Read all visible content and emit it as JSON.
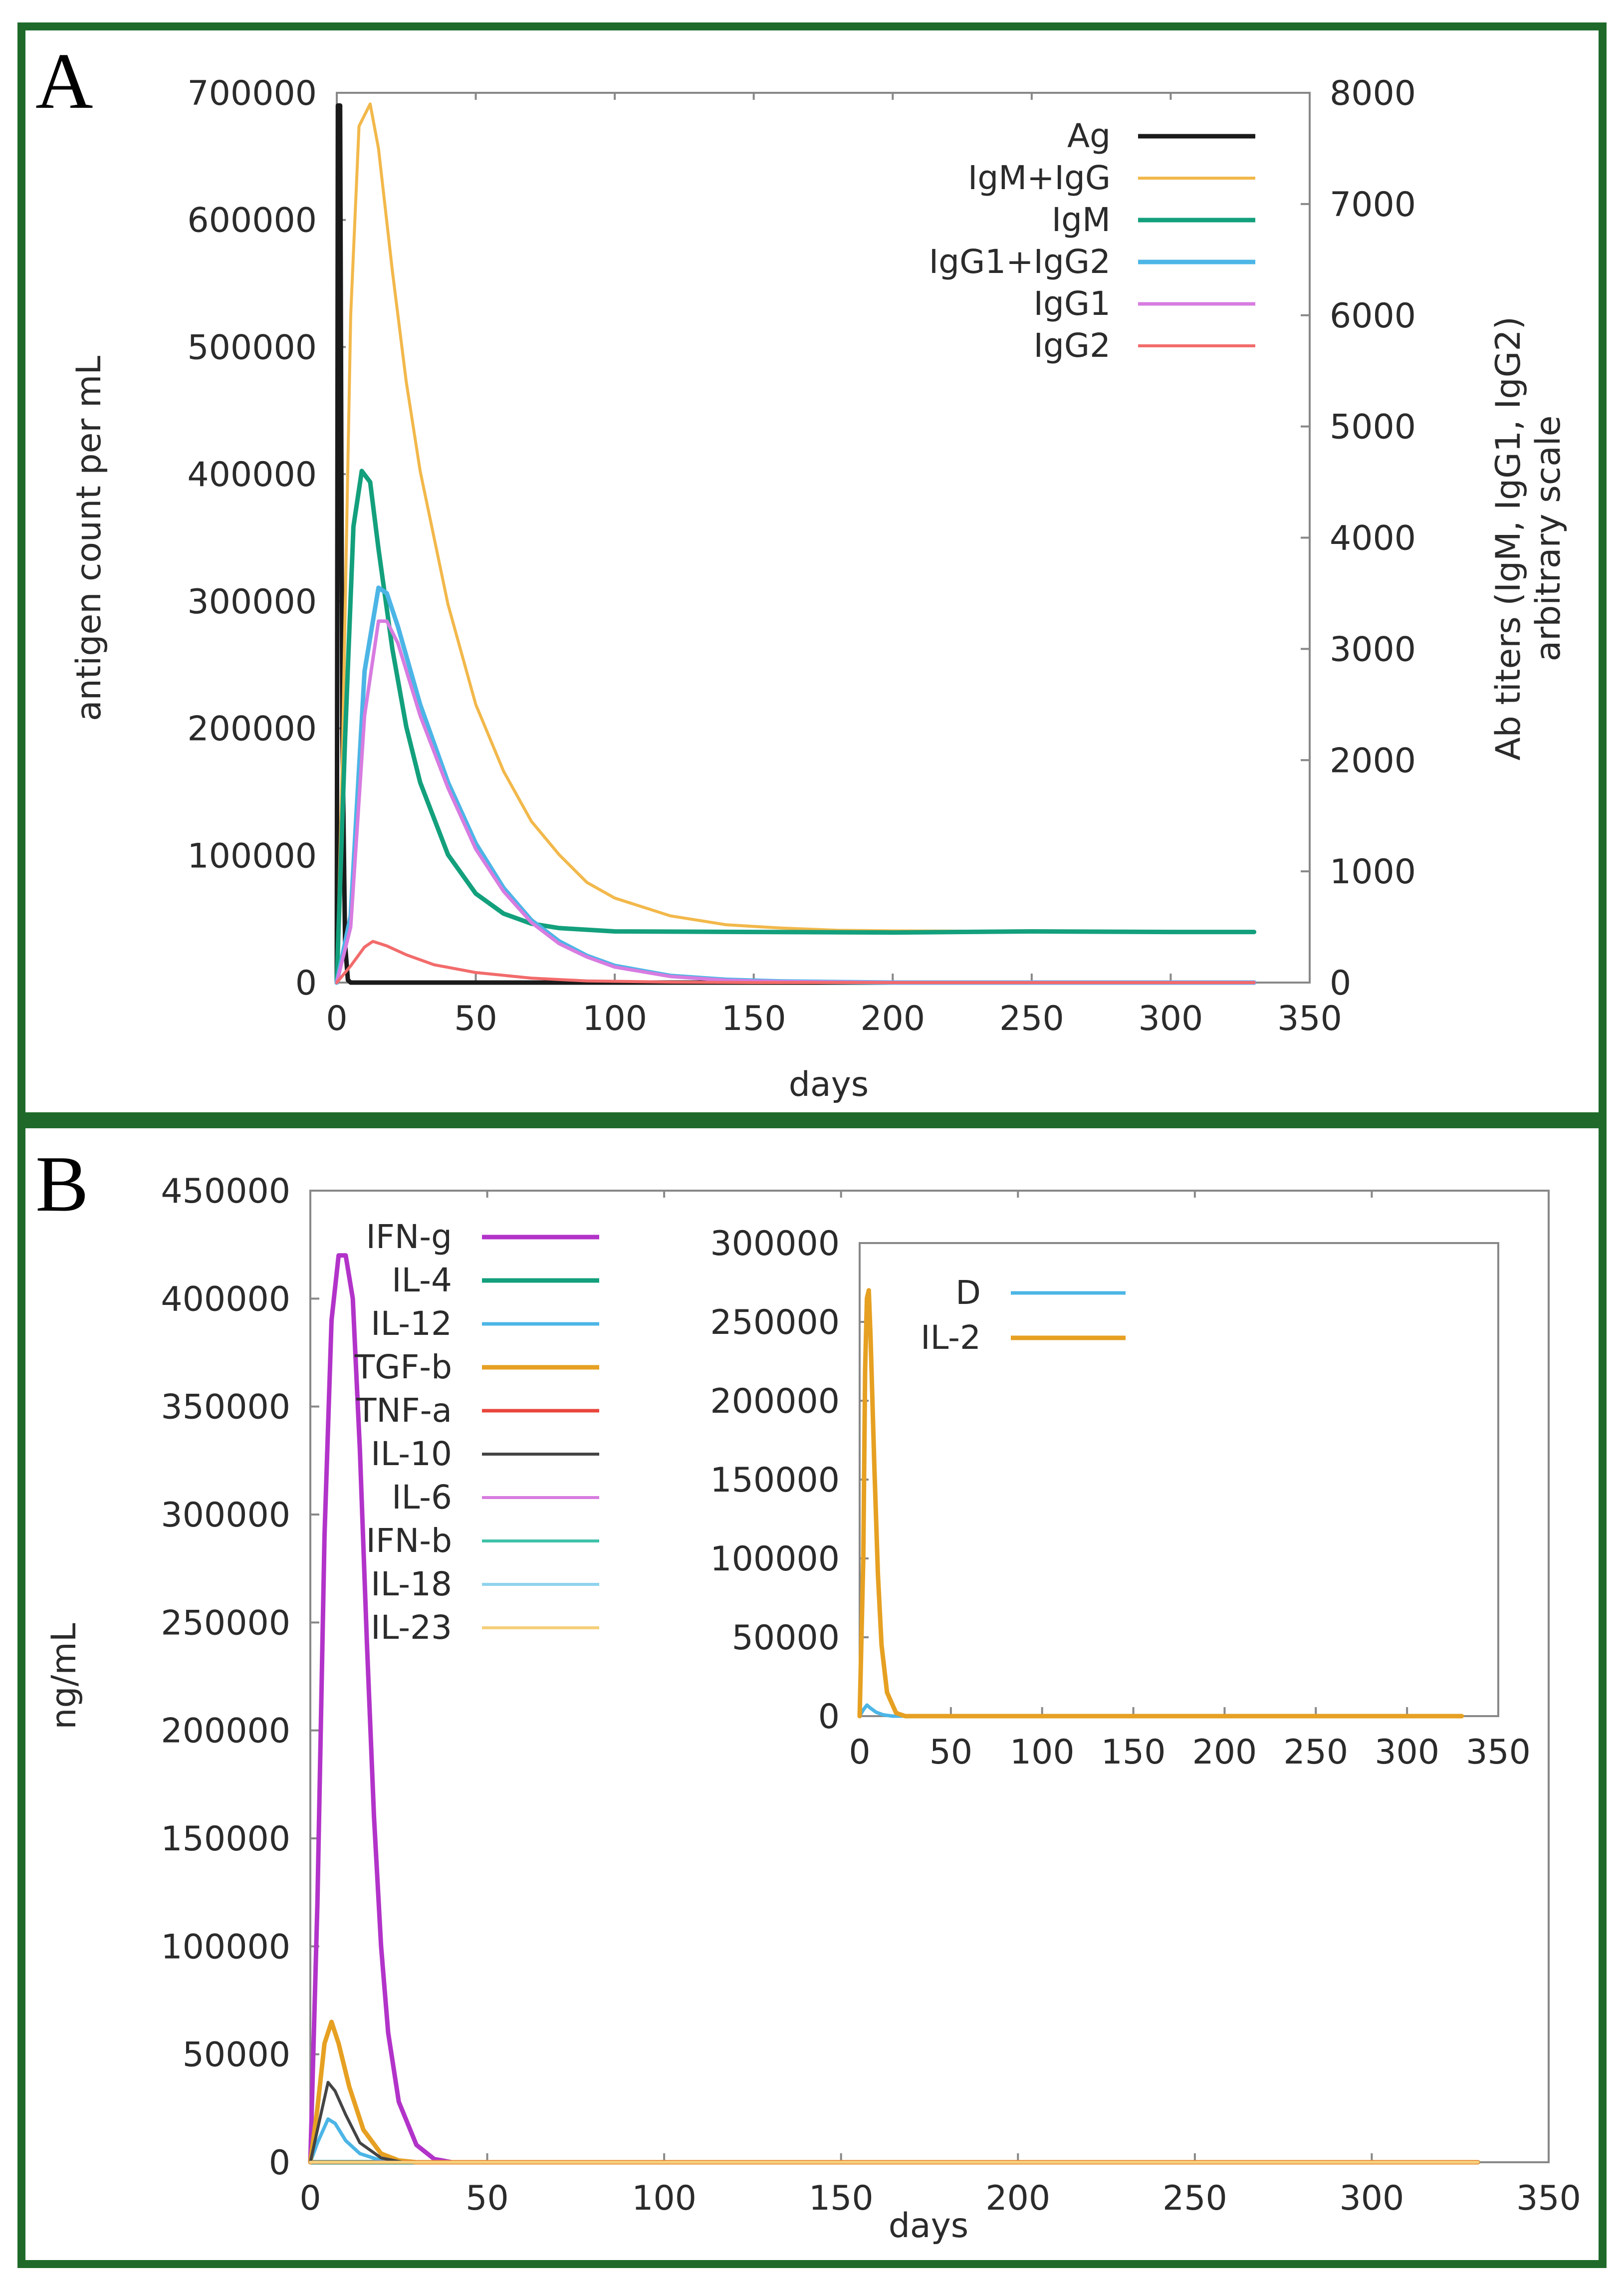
{
  "chart_data": [
    {
      "panel": "A",
      "type": "line",
      "xlabel": "days",
      "ylabel": "antigen count per mL",
      "y2label_line1": "Ab titers (IgM, IgG1, IgG2)",
      "y2label_line2": "arbitrary scale",
      "xlim": [
        0,
        350
      ],
      "ylim": [
        0,
        700000
      ],
      "y2lim": [
        0,
        8000
      ],
      "xticks": [
        0,
        50,
        100,
        150,
        200,
        250,
        300,
        350
      ],
      "yticks": [
        0,
        100000,
        200000,
        300000,
        400000,
        500000,
        600000,
        700000
      ],
      "y2ticks": [
        0,
        1000,
        2000,
        3000,
        4000,
        5000,
        6000,
        7000,
        8000
      ],
      "legend_position": "top-right",
      "series": [
        {
          "name": "Ag",
          "axis": "y",
          "color": "#1a1a1a",
          "width": 9,
          "points": [
            [
              0,
              0
            ],
            [
              0.4,
              690000
            ],
            [
              1.2,
              690000
            ],
            [
              2,
              200000
            ],
            [
              3,
              30000
            ],
            [
              4,
              2000
            ],
            [
              5,
              0
            ],
            [
              330,
              0
            ]
          ]
        },
        {
          "name": "IgM+IgG",
          "axis": "y2",
          "color": "#f2b84b",
          "width": 6,
          "points": [
            [
              0,
              0
            ],
            [
              2,
              2000
            ],
            [
              5,
              6000
            ],
            [
              8,
              7700
            ],
            [
              12,
              7900
            ],
            [
              15,
              7500
            ],
            [
              20,
              6400
            ],
            [
              25,
              5400
            ],
            [
              30,
              4600
            ],
            [
              40,
              3400
            ],
            [
              50,
              2500
            ],
            [
              60,
              1900
            ],
            [
              70,
              1450
            ],
            [
              80,
              1150
            ],
            [
              90,
              900
            ],
            [
              100,
              760
            ],
            [
              120,
              600
            ],
            [
              140,
              520
            ],
            [
              160,
              490
            ],
            [
              180,
              470
            ],
            [
              200,
              465
            ],
            [
              250,
              460
            ],
            [
              300,
              455
            ],
            [
              330,
              455
            ]
          ]
        },
        {
          "name": "IgM",
          "axis": "y2",
          "color": "#13a07c",
          "width": 9,
          "points": [
            [
              0,
              0
            ],
            [
              3,
              2200
            ],
            [
              6,
              4100
            ],
            [
              9,
              4600
            ],
            [
              12,
              4500
            ],
            [
              15,
              3900
            ],
            [
              20,
              3000
            ],
            [
              25,
              2300
            ],
            [
              30,
              1800
            ],
            [
              40,
              1150
            ],
            [
              50,
              800
            ],
            [
              60,
              620
            ],
            [
              70,
              530
            ],
            [
              80,
              490
            ],
            [
              100,
              460
            ],
            [
              150,
              455
            ],
            [
              200,
              450
            ],
            [
              250,
              460
            ],
            [
              300,
              455
            ],
            [
              330,
              455
            ]
          ]
        },
        {
          "name": "IgG1+IgG2",
          "axis": "y2",
          "color": "#4cb5e6",
          "width": 9,
          "points": [
            [
              0,
              0
            ],
            [
              5,
              600
            ],
            [
              10,
              2800
            ],
            [
              15,
              3550
            ],
            [
              18,
              3500
            ],
            [
              22,
              3200
            ],
            [
              30,
              2500
            ],
            [
              40,
              1800
            ],
            [
              50,
              1250
            ],
            [
              60,
              850
            ],
            [
              70,
              560
            ],
            [
              80,
              370
            ],
            [
              90,
              240
            ],
            [
              100,
              150
            ],
            [
              120,
              60
            ],
            [
              140,
              25
            ],
            [
              160,
              10
            ],
            [
              200,
              0
            ],
            [
              330,
              0
            ]
          ]
        },
        {
          "name": "IgG1",
          "axis": "y2",
          "color": "#d77ce0",
          "width": 7,
          "points": [
            [
              0,
              0
            ],
            [
              5,
              500
            ],
            [
              10,
              2400
            ],
            [
              15,
              3250
            ],
            [
              18,
              3250
            ],
            [
              22,
              3050
            ],
            [
              30,
              2400
            ],
            [
              40,
              1750
            ],
            [
              50,
              1200
            ],
            [
              60,
              820
            ],
            [
              70,
              540
            ],
            [
              80,
              350
            ],
            [
              90,
              230
            ],
            [
              100,
              140
            ],
            [
              120,
              55
            ],
            [
              140,
              20
            ],
            [
              160,
              8
            ],
            [
              200,
              0
            ],
            [
              330,
              0
            ]
          ]
        },
        {
          "name": "IgG2",
          "axis": "y2",
          "color": "#f26b6b",
          "width": 6,
          "points": [
            [
              0,
              0
            ],
            [
              5,
              150
            ],
            [
              10,
              320
            ],
            [
              13,
              370
            ],
            [
              18,
              330
            ],
            [
              25,
              250
            ],
            [
              35,
              160
            ],
            [
              50,
              90
            ],
            [
              70,
              40
            ],
            [
              90,
              15
            ],
            [
              120,
              4
            ],
            [
              150,
              0
            ],
            [
              330,
              0
            ]
          ]
        }
      ]
    },
    {
      "panel": "B",
      "type": "line",
      "xlabel": "days",
      "ylabel": "ng/mL",
      "xlim": [
        0,
        350
      ],
      "ylim": [
        0,
        450000
      ],
      "xticks": [
        0,
        50,
        100,
        150,
        200,
        250,
        300,
        350
      ],
      "yticks": [
        0,
        50000,
        100000,
        150000,
        200000,
        250000,
        300000,
        350000,
        400000,
        450000
      ],
      "legend_position": "top-left",
      "series": [
        {
          "name": "IFN-g",
          "color": "#b233c9",
          "width": 9,
          "points": [
            [
              0,
              0
            ],
            [
              2,
              120000
            ],
            [
              4,
              290000
            ],
            [
              6,
              390000
            ],
            [
              8,
              420000
            ],
            [
              10,
              420000
            ],
            [
              12,
              400000
            ],
            [
              14,
              330000
            ],
            [
              16,
              240000
            ],
            [
              18,
              160000
            ],
            [
              20,
              100000
            ],
            [
              22,
              60000
            ],
            [
              25,
              28000
            ],
            [
              30,
              8000
            ],
            [
              35,
              1500
            ],
            [
              40,
              0
            ],
            [
              330,
              0
            ]
          ]
        },
        {
          "name": "IL-4",
          "color": "#13a07c",
          "width": 9,
          "points": [
            [
              0,
              0
            ],
            [
              330,
              0
            ]
          ]
        },
        {
          "name": "IL-12",
          "color": "#4cb5e6",
          "width": 7,
          "points": [
            [
              0,
              0
            ],
            [
              2,
              9000
            ],
            [
              5,
              20000
            ],
            [
              7,
              18000
            ],
            [
              10,
              10000
            ],
            [
              14,
              4000
            ],
            [
              20,
              800
            ],
            [
              25,
              0
            ],
            [
              330,
              0
            ]
          ]
        },
        {
          "name": "TGF-b",
          "color": "#e6a022",
          "width": 9,
          "points": [
            [
              0,
              0
            ],
            [
              2,
              25000
            ],
            [
              4,
              55000
            ],
            [
              6,
              65000
            ],
            [
              8,
              55000
            ],
            [
              11,
              35000
            ],
            [
              15,
              15000
            ],
            [
              20,
              4000
            ],
            [
              25,
              800
            ],
            [
              30,
              0
            ],
            [
              330,
              0
            ]
          ]
        },
        {
          "name": "TNF-a",
          "color": "#e8453c",
          "width": 7,
          "points": [
            [
              0,
              0
            ],
            [
              330,
              0
            ]
          ]
        },
        {
          "name": "IL-10",
          "color": "#444444",
          "width": 6,
          "points": [
            [
              0,
              0
            ],
            [
              2,
              15000
            ],
            [
              5,
              37000
            ],
            [
              7,
              33000
            ],
            [
              10,
              22000
            ],
            [
              14,
              9000
            ],
            [
              20,
              2000
            ],
            [
              26,
              0
            ],
            [
              330,
              0
            ]
          ]
        },
        {
          "name": "IL-6",
          "color": "#d77ce0",
          "width": 6,
          "points": [
            [
              0,
              0
            ],
            [
              330,
              0
            ]
          ]
        },
        {
          "name": "IFN-b",
          "color": "#3fc2a8",
          "width": 6,
          "points": [
            [
              0,
              0
            ],
            [
              330,
              0
            ]
          ]
        },
        {
          "name": "IL-18",
          "color": "#8fd3ee",
          "width": 6,
          "points": [
            [
              0,
              0
            ],
            [
              330,
              0
            ]
          ]
        },
        {
          "name": "IL-23",
          "color": "#f5cf7a",
          "width": 6,
          "points": [
            [
              0,
              0
            ],
            [
              330,
              0
            ]
          ]
        }
      ]
    },
    {
      "panel": "B-inset",
      "type": "line",
      "xlabel": "",
      "ylabel": "",
      "xlim": [
        0,
        350
      ],
      "ylim": [
        0,
        300000
      ],
      "xticks": [
        0,
        50,
        100,
        150,
        200,
        250,
        300,
        350
      ],
      "yticks": [
        0,
        50000,
        100000,
        150000,
        200000,
        250000,
        300000
      ],
      "legend_position": "top-left",
      "series": [
        {
          "name": "D",
          "color": "#4cb5e6",
          "width": 7,
          "points": [
            [
              0,
              0
            ],
            [
              2,
              4000
            ],
            [
              4,
              7000
            ],
            [
              6,
              5000
            ],
            [
              9,
              2500
            ],
            [
              13,
              800
            ],
            [
              18,
              0
            ],
            [
              330,
              0
            ]
          ]
        },
        {
          "name": "IL-2",
          "color": "#e6a022",
          "width": 9,
          "points": [
            [
              0,
              0
            ],
            [
              2,
              100000
            ],
            [
              3,
              220000
            ],
            [
              4,
              265000
            ],
            [
              5,
              270000
            ],
            [
              6,
              240000
            ],
            [
              8,
              160000
            ],
            [
              10,
              90000
            ],
            [
              12,
              45000
            ],
            [
              15,
              15000
            ],
            [
              20,
              2000
            ],
            [
              25,
              0
            ],
            [
              330,
              0
            ]
          ]
        }
      ]
    }
  ],
  "panel_labels": {
    "a": "A",
    "b": "B"
  },
  "tick_labels": {
    "a_x": [
      "0",
      "50",
      "100",
      "150",
      "200",
      "250",
      "300",
      "350"
    ],
    "a_y": [
      "0",
      "100000",
      "200000",
      "300000",
      "400000",
      "500000",
      "600000",
      "700000"
    ],
    "a_y2": [
      "0",
      "1000",
      "2000",
      "3000",
      "4000",
      "5000",
      "6000",
      "7000",
      "8000"
    ],
    "b_x": [
      "0",
      "50",
      "100",
      "150",
      "200",
      "250",
      "300",
      "350"
    ],
    "b_y": [
      "0",
      "50000",
      "100000",
      "150000",
      "200000",
      "250000",
      "300000",
      "350000",
      "400000",
      "450000"
    ],
    "inset_x": [
      "0",
      "50",
      "100",
      "150",
      "200",
      "250",
      "300",
      "350"
    ],
    "inset_y": [
      "0",
      "50000",
      "100000",
      "150000",
      "200000",
      "250000",
      "300000"
    ]
  }
}
